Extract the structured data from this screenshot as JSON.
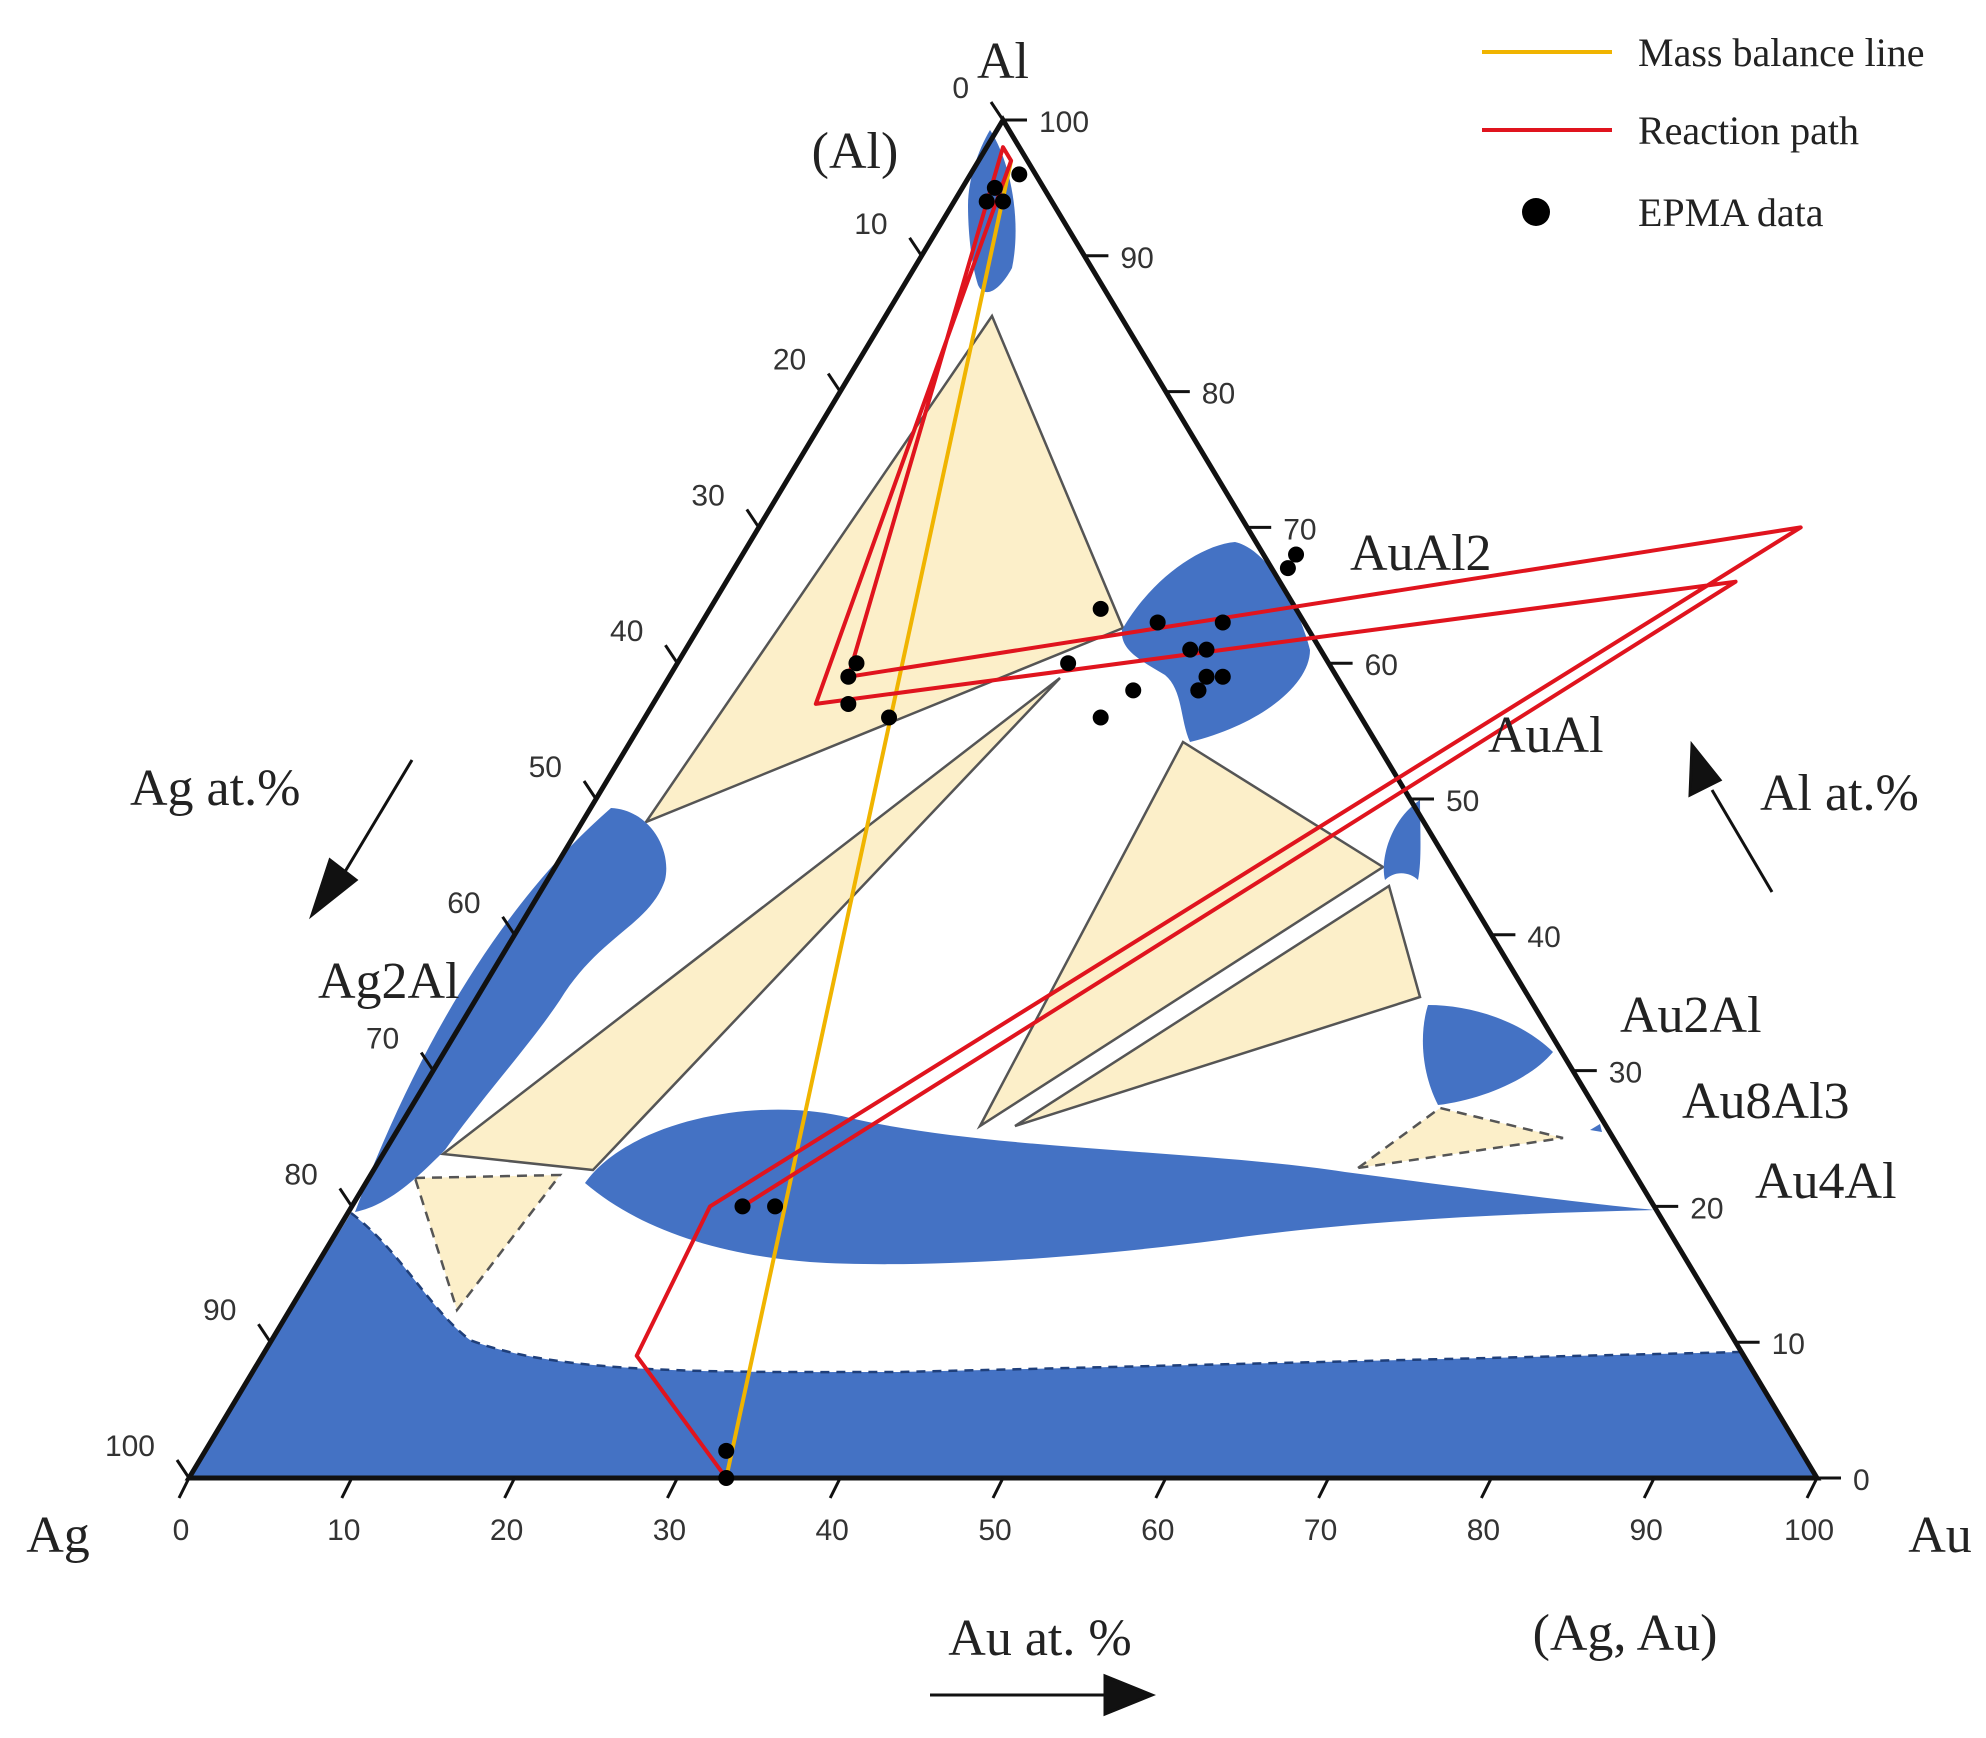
{
  "chart_data": {
    "type": "ternary",
    "vertices": {
      "top": "Al",
      "left": "Ag",
      "right": "Au"
    },
    "axis_labels": {
      "left": "Ag at.%",
      "right": "Al at.%",
      "bottom": "Au at. %"
    },
    "ticks": [
      "0",
      "10",
      "20",
      "30",
      "40",
      "50",
      "60",
      "70",
      "80",
      "90",
      "100"
    ],
    "phase_labels": {
      "al": "(Al)",
      "auAl2": "AuAl2",
      "auAl": "AuAl",
      "au2Al": "Au2Al",
      "au8Al3": "Au8Al3",
      "au4Al": "Au4Al",
      "ag2Al": "Ag2Al",
      "agAu": "(Ag, Au)"
    },
    "legend": [
      {
        "label": "Mass balance line",
        "kind": "line",
        "color": "#f0b400"
      },
      {
        "label": "Reaction path",
        "kind": "line",
        "color": "#e0141e"
      },
      {
        "label": "EPMA data",
        "kind": "marker",
        "color": "#000000"
      }
    ],
    "colors": {
      "single_phase": "#4472c4",
      "tie_triangle": "#fcefc9",
      "frame": "#111111"
    },
    "mass_balance_line": [
      [
        33,
        0
      ],
      [
        2,
        97
      ]
    ],
    "reaction_path": [
      [
        33,
        0
      ],
      [
        23,
        9
      ],
      [
        22,
        20
      ],
      [
        64,
        70
      ],
      [
        11,
        59
      ],
      [
        1,
        98
      ],
      [
        2,
        97
      ],
      [
        10,
        57
      ],
      [
        62,
        66
      ],
      [
        24,
        20
      ]
    ],
    "epma_data": [
      [
        32,
        2
      ],
      [
        33,
        0
      ],
      [
        24,
        20
      ],
      [
        26,
        20
      ],
      [
        12,
        57
      ],
      [
        11,
        59
      ],
      [
        11,
        60
      ],
      [
        15,
        56
      ],
      [
        28,
        56
      ],
      [
        24,
        60
      ],
      [
        33,
        58
      ],
      [
        33,
        58
      ],
      [
        33,
        59
      ],
      [
        34,
        59
      ],
      [
        24,
        64
      ],
      [
        28,
        63
      ],
      [
        31,
        61
      ],
      [
        32,
        61
      ],
      [
        29,
        58
      ],
      [
        32,
        63
      ],
      [
        34,
        68
      ],
      [
        34,
        67
      ],
      [
        2,
        94
      ],
      [
        3,
        94
      ],
      [
        2,
        95
      ],
      [
        3,
        96
      ]
    ]
  }
}
